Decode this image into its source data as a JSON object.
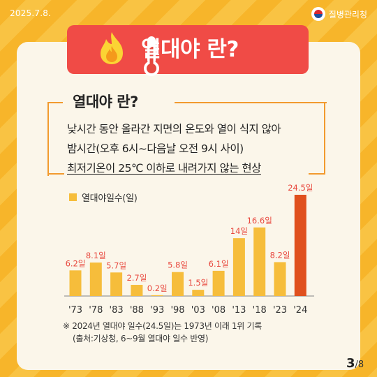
{
  "header": {
    "date": "2025.7.8.",
    "org": "질병관리청"
  },
  "banner": {
    "title": "열대야 란?",
    "icons": [
      "thermometer-icon",
      "fire-icon"
    ]
  },
  "definition": {
    "title": "열대야 란?",
    "line1": "낮시간 동안 올라간 지면의 온도와 열이 식지 않아",
    "line2": "밤시간(오후 6시~다음날 오전 9시 사이)",
    "line3": "최저기온이 25℃ 이하로 내려가지 않는 현상"
  },
  "chart_data": {
    "type": "bar",
    "legend": "열대야일수(일)",
    "categories": [
      "'73",
      "'78",
      "'83",
      "'88",
      "'93",
      "'98",
      "'03",
      "'08",
      "'13",
      "'18",
      "'23",
      "'24"
    ],
    "values": [
      6.2,
      8.1,
      5.7,
      2.7,
      0.2,
      5.8,
      1.5,
      6.1,
      14,
      16.6,
      8.2,
      24.5
    ],
    "value_labels": [
      "6.2일",
      "8.1일",
      "5.7일",
      "2.7일",
      "0.2일",
      "5.8일",
      "1.5일",
      "6.1일",
      "14일",
      "16.6일",
      "8.2일",
      "24.5일"
    ],
    "highlight_index": 11,
    "colors": {
      "bar": "#f6bd3b",
      "highlight": "#e0501e",
      "label": "#e8483e",
      "axis": "#9a9a9a"
    },
    "grid": false
  },
  "notes": {
    "line1": "※ 2024년 열대야 일수(24.5일)는 1973년 이래 1위 기록",
    "line2": "(출처:기상청, 6~9월 열대야 일수 반영)"
  },
  "pagination": {
    "current": "3",
    "total": "/8"
  }
}
